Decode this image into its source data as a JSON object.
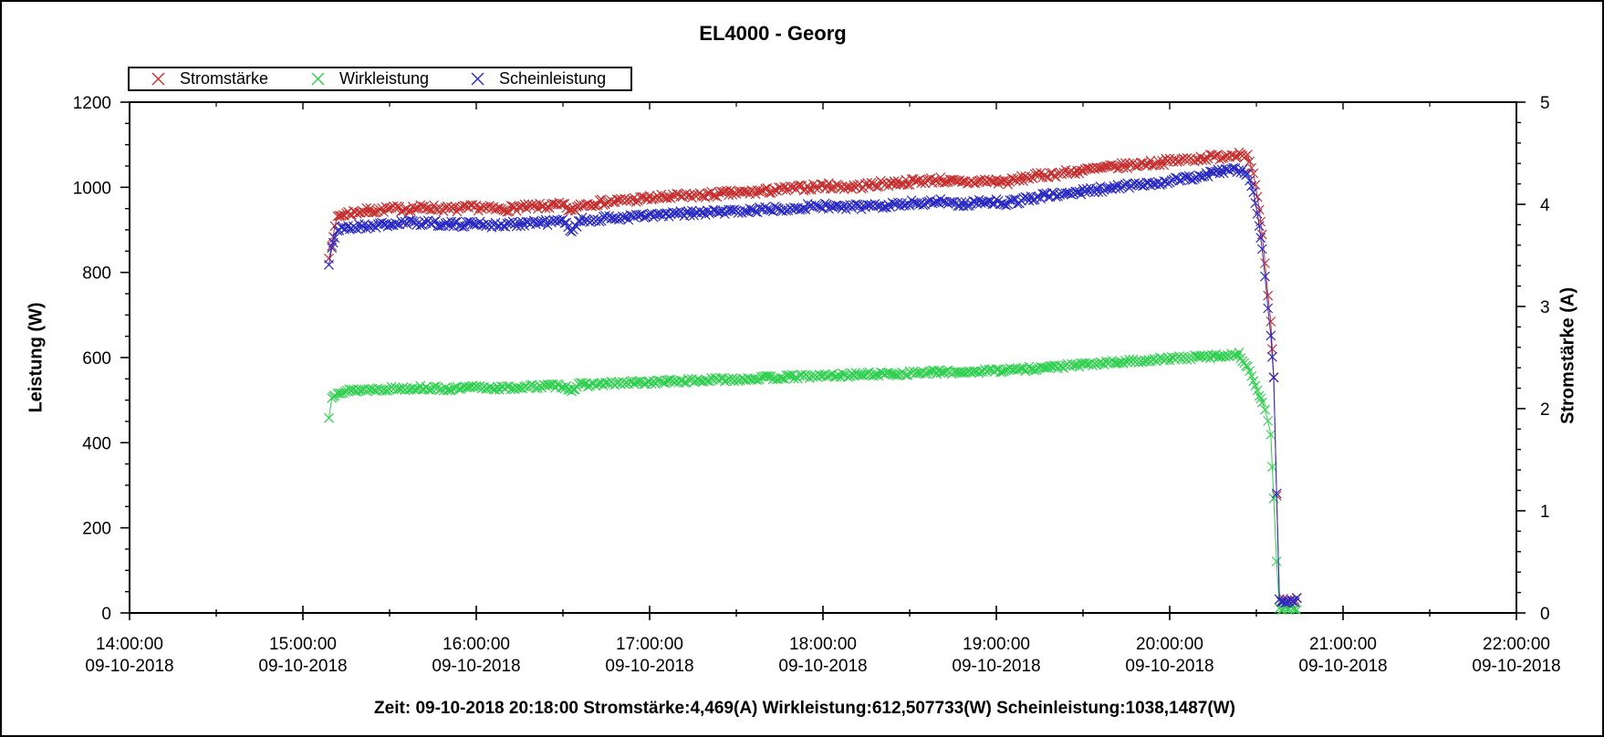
{
  "window": {
    "background": "#ffffff",
    "frame_color": "#000000"
  },
  "status_bar": {
    "text": "Zeit: 09-10-2018 20:18:00 Stromstärke:4,469(A) Wirkleistung:612,507733(W) Scheinleistung:1038,1487(W)",
    "cursor_time": "09-10-2018 20:18:00",
    "cursor_values": {
      "stromstaerke_A": "4,469",
      "wirkleistung_W": "612,507733",
      "scheinleistung_W": "1038,1487"
    }
  },
  "chart_data": {
    "type": "scatter",
    "title": "EL4000 - Georg",
    "grid": false,
    "legend_position": "top-left",
    "x_axis": {
      "ticks": [
        "14:00:00",
        "15:00:00",
        "16:00:00",
        "17:00:00",
        "18:00:00",
        "19:00:00",
        "20:00:00",
        "21:00:00",
        "22:00:00"
      ],
      "date": "09-10-2018",
      "range_hours": [
        14,
        22
      ],
      "minor_step_minutes": 30
    },
    "y_left": {
      "label": "Leistung (W)",
      "range": [
        0,
        1200
      ],
      "major_ticks": [
        0,
        200,
        400,
        600,
        800,
        1000,
        1200
      ],
      "minor_step": 50
    },
    "y_right": {
      "label": "Stromstärke (A)",
      "range": [
        0,
        5
      ],
      "major_ticks": [
        0,
        1,
        2,
        3,
        4,
        5
      ],
      "minor_step": 0.2
    },
    "series": [
      {
        "name": "Stromstärke",
        "unit": "A",
        "axis": "right",
        "color": "#c62f2f",
        "marker": "x",
        "scatter": 0.03,
        "seed": 7,
        "points": [
          [
            "15:09",
            3.47
          ],
          [
            "15:10",
            3.6
          ],
          [
            "15:11",
            3.78
          ],
          [
            "15:12",
            3.88
          ],
          [
            "15:15",
            3.91
          ],
          [
            "15:20",
            3.93
          ],
          [
            "15:28",
            3.95
          ],
          [
            "15:36",
            3.96
          ],
          [
            "15:44",
            3.97
          ],
          [
            "15:52",
            3.95
          ],
          [
            "16:00",
            3.97
          ],
          [
            "16:08",
            3.95
          ],
          [
            "16:16",
            3.97
          ],
          [
            "16:24",
            3.98
          ],
          [
            "16:30",
            3.99
          ],
          [
            "16:33",
            3.93
          ],
          [
            "16:36",
            4.0
          ],
          [
            "16:48",
            4.03
          ],
          [
            "17:00",
            4.06
          ],
          [
            "17:12",
            4.08
          ],
          [
            "17:24",
            4.1
          ],
          [
            "17:36",
            4.12
          ],
          [
            "17:48",
            4.15
          ],
          [
            "18:00",
            4.18
          ],
          [
            "18:10",
            4.17
          ],
          [
            "18:20",
            4.2
          ],
          [
            "18:30",
            4.22
          ],
          [
            "18:40",
            4.24
          ],
          [
            "18:48",
            4.21
          ],
          [
            "18:56",
            4.23
          ],
          [
            "19:04",
            4.22
          ],
          [
            "19:12",
            4.27
          ],
          [
            "19:24",
            4.31
          ],
          [
            "19:36",
            4.35
          ],
          [
            "19:48",
            4.39
          ],
          [
            "20:00",
            4.42
          ],
          [
            "20:10",
            4.45
          ],
          [
            "20:18",
            4.469
          ],
          [
            "20:24",
            4.5
          ],
          [
            "20:27",
            4.47
          ],
          [
            "20:29",
            4.3
          ],
          [
            "20:31",
            3.95
          ],
          [
            "20:32",
            3.7
          ],
          [
            "20:33",
            3.42
          ],
          [
            "20:34",
            3.1
          ],
          [
            "20:35",
            2.85
          ],
          [
            "20:36",
            2.31
          ],
          [
            "20:37",
            1.15
          ],
          [
            "20:38",
            0.13
          ],
          [
            "20:40",
            0.12
          ],
          [
            "20:42",
            0.11
          ],
          [
            "20:44",
            0.12
          ]
        ]
      },
      {
        "name": "Wirkleistung",
        "unit": "W",
        "axis": "left",
        "color": "#2fd04f",
        "marker": "x",
        "scatter": 5,
        "seed": 13,
        "points": [
          [
            "15:09",
            458
          ],
          [
            "15:10",
            505
          ],
          [
            "15:11",
            515
          ],
          [
            "15:12",
            520
          ],
          [
            "15:20",
            524
          ],
          [
            "15:30",
            527
          ],
          [
            "15:40",
            529
          ],
          [
            "15:52",
            526
          ],
          [
            "16:00",
            530
          ],
          [
            "16:10",
            528
          ],
          [
            "16:20",
            532
          ],
          [
            "16:30",
            534
          ],
          [
            "16:33",
            524
          ],
          [
            "16:36",
            536
          ],
          [
            "16:48",
            539
          ],
          [
            "17:00",
            542
          ],
          [
            "17:12",
            545
          ],
          [
            "17:24",
            548
          ],
          [
            "17:36",
            551
          ],
          [
            "17:48",
            554
          ],
          [
            "18:00",
            557
          ],
          [
            "18:12",
            560
          ],
          [
            "18:24",
            562
          ],
          [
            "18:36",
            565
          ],
          [
            "18:48",
            566
          ],
          [
            "19:00",
            570
          ],
          [
            "19:12",
            574
          ],
          [
            "19:24",
            580
          ],
          [
            "19:36",
            586
          ],
          [
            "19:48",
            592
          ],
          [
            "20:00",
            597
          ],
          [
            "20:10",
            601
          ],
          [
            "20:18",
            605
          ],
          [
            "20:24",
            607
          ],
          [
            "20:27",
            580
          ],
          [
            "20:29",
            545
          ],
          [
            "20:31",
            510
          ],
          [
            "20:32",
            495
          ],
          [
            "20:33",
            478
          ],
          [
            "20:34",
            452
          ],
          [
            "20:35",
            420
          ],
          [
            "20:36",
            268
          ],
          [
            "20:37",
            120
          ],
          [
            "20:38",
            12
          ],
          [
            "20:40",
            10
          ],
          [
            "20:42",
            11
          ],
          [
            "20:44",
            10
          ]
        ]
      },
      {
        "name": "Scheinleistung",
        "unit": "W",
        "axis": "left",
        "color": "#2a2ac2",
        "marker": "x",
        "scatter": 7,
        "seed": 21,
        "points": [
          [
            "15:09",
            818
          ],
          [
            "15:10",
            858
          ],
          [
            "15:11",
            882
          ],
          [
            "15:12",
            898
          ],
          [
            "15:15",
            905
          ],
          [
            "15:20",
            908
          ],
          [
            "15:28",
            912
          ],
          [
            "15:36",
            916
          ],
          [
            "15:44",
            918
          ],
          [
            "15:52",
            912
          ],
          [
            "16:00",
            916
          ],
          [
            "16:08",
            910
          ],
          [
            "16:16",
            916
          ],
          [
            "16:24",
            918
          ],
          [
            "16:30",
            920
          ],
          [
            "16:33",
            900
          ],
          [
            "16:36",
            922
          ],
          [
            "16:48",
            928
          ],
          [
            "17:00",
            933
          ],
          [
            "17:12",
            938
          ],
          [
            "17:24",
            942
          ],
          [
            "17:36",
            946
          ],
          [
            "17:48",
            952
          ],
          [
            "18:00",
            956
          ],
          [
            "18:10",
            953
          ],
          [
            "18:20",
            958
          ],
          [
            "18:30",
            962
          ],
          [
            "18:40",
            968
          ],
          [
            "18:48",
            960
          ],
          [
            "18:56",
            968
          ],
          [
            "19:04",
            963
          ],
          [
            "19:12",
            975
          ],
          [
            "19:24",
            985
          ],
          [
            "19:36",
            995
          ],
          [
            "19:48",
            1005
          ],
          [
            "20:00",
            1015
          ],
          [
            "20:10",
            1025
          ],
          [
            "20:18",
            1038
          ],
          [
            "20:24",
            1042
          ],
          [
            "20:27",
            1030
          ],
          [
            "20:29",
            990
          ],
          [
            "20:31",
            910
          ],
          [
            "20:32",
            855
          ],
          [
            "20:33",
            790
          ],
          [
            "20:34",
            715
          ],
          [
            "20:35",
            650
          ],
          [
            "20:36",
            552
          ],
          [
            "20:37",
            280
          ],
          [
            "20:38",
            32
          ],
          [
            "20:40",
            28
          ],
          [
            "20:42",
            30
          ],
          [
            "20:44",
            29
          ]
        ]
      }
    ]
  }
}
